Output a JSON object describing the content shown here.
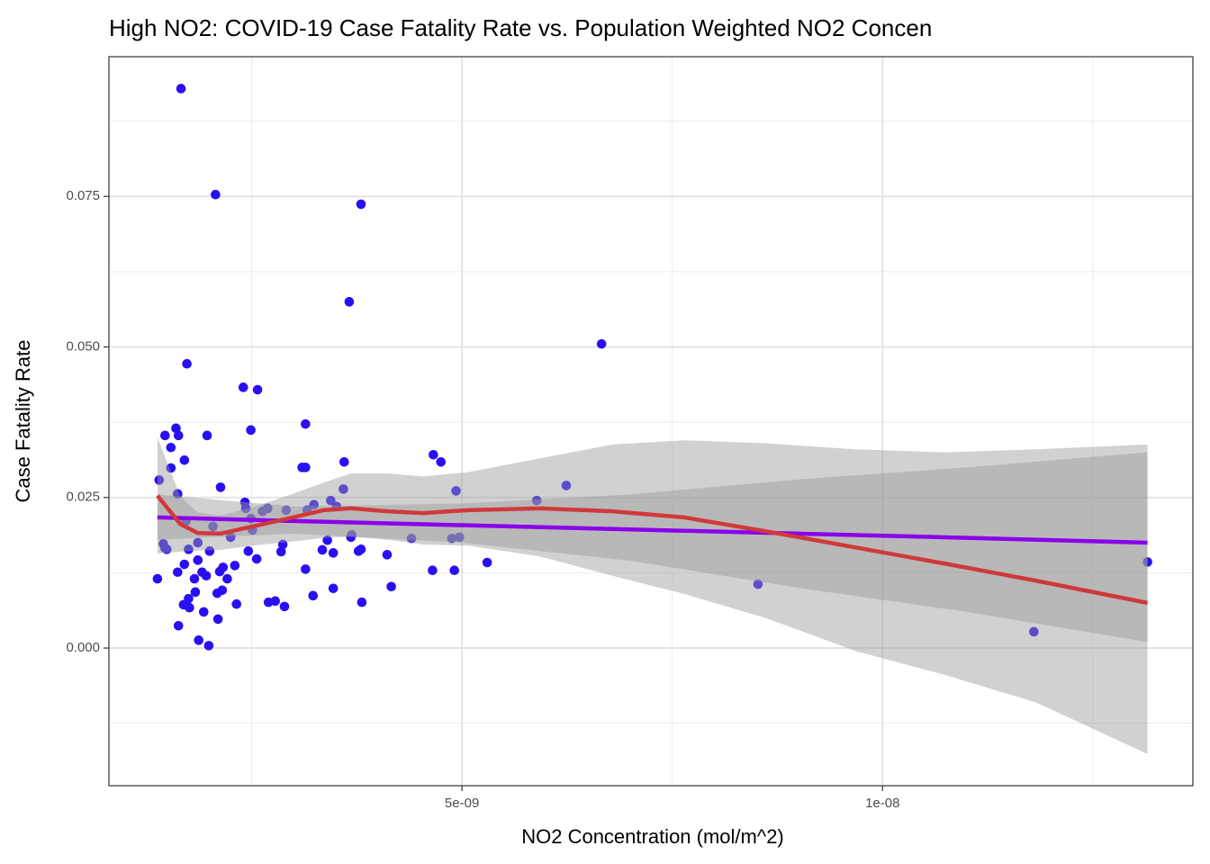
{
  "chart_data": {
    "type": "scatter",
    "title": "High NO2: COVID-19 Case Fatality Rate vs. Population Weighted NO2 Concen",
    "x_label": "NO2 Concentration (mol/m^2)",
    "y_label": "Case Fatality Rate",
    "xlim": [
      8.03e-10,
      1.369e-08
    ],
    "ylim": [
      -0.02286,
      0.0982
    ],
    "xticks": [
      {
        "value": 5e-09,
        "label": "5e-09"
      },
      {
        "value": 1e-08,
        "label": "1e-08"
      }
    ],
    "x_minor_ticks": [
      2.5e-09,
      7.5e-09,
      1.25e-08
    ],
    "yticks": [
      {
        "value": 0,
        "label": "0.000"
      },
      {
        "value": 0.025,
        "label": "0.025"
      },
      {
        "value": 0.05,
        "label": "0.050"
      },
      {
        "value": 0.075,
        "label": "0.075"
      }
    ],
    "y_minor_ticks": [
      -0.0125,
      0.0125,
      0.0375,
      0.0625,
      0.0875
    ],
    "grid": true,
    "band_color": "#9a9a9a",
    "series": [
      {
        "type": "scatter",
        "color": "#2a0ff2",
        "x": [
          1.66e-09,
          2.07e-09,
          3.8e-09,
          3.66e-09,
          6.66e-09,
          1.73e-09,
          2.4e-09,
          2.57e-09,
          3.14e-09,
          1.6e-09,
          1.47e-09,
          1.63e-09,
          1.97e-09,
          2.49e-09,
          1.54e-09,
          4.66e-09,
          1.7e-09,
          3.6e-09,
          4.75e-09,
          1.54e-09,
          3.1e-09,
          3.14e-09,
          1.4e-09,
          2.13e-09,
          6.24e-09,
          3.59e-09,
          4.93e-09,
          1.62e-09,
          2.42e-09,
          3.44e-09,
          5.89e-09,
          3.51e-09,
          3.24e-09,
          2.43e-09,
          2.69e-09,
          2.63e-09,
          2.91e-09,
          3.16e-09,
          2.49e-09,
          1.72e-09,
          2.04e-09,
          2.51e-09,
          2.25e-09,
          3.4e-09,
          3.69e-09,
          3.68e-09,
          4.4e-09,
          4.88e-09,
          4.97e-09,
          1.45e-09,
          1.86e-09,
          2.87e-09,
          1.47e-09,
          1.49e-09,
          1.75e-09,
          2e-09,
          2.46e-09,
          2.85e-09,
          3.34e-09,
          3.47e-09,
          3.77e-09,
          3.8e-09,
          4.11e-09,
          2.56e-09,
          5.3e-09,
          1.315e-08,
          1.86e-09,
          1.7e-09,
          2.3e-09,
          2.16e-09,
          3.14e-09,
          2.12e-09,
          4.65e-09,
          4.91e-09,
          1.62e-09,
          1.91e-09,
          1.96e-09,
          1.82e-09,
          2.21e-09,
          8.52e-09,
          4.16e-09,
          3.47e-09,
          2.15e-09,
          1.83e-09,
          2.09e-09,
          3.23e-09,
          1.75e-09,
          2.7e-09,
          2.78e-09,
          3.81e-09,
          2.32e-09,
          1.69e-09,
          1.76e-09,
          2.89e-09,
          1.93e-09,
          2.1e-09,
          1.63e-09,
          1.18e-08,
          1.87e-09,
          1.99e-09,
          1.38e-09
        ],
        "values": [
          0.0929,
          0.0753,
          0.0737,
          0.0575,
          0.0505,
          0.0472,
          0.0433,
          0.0429,
          0.0372,
          0.0365,
          0.0353,
          0.0353,
          0.0353,
          0.0362,
          0.0333,
          0.0321,
          0.0312,
          0.0309,
          0.0309,
          0.0299,
          0.03,
          0.03,
          0.0279,
          0.0267,
          0.027,
          0.0264,
          0.0261,
          0.0256,
          0.0242,
          0.0245,
          0.0245,
          0.0235,
          0.0238,
          0.0232,
          0.0232,
          0.0227,
          0.0229,
          0.0229,
          0.0215,
          0.0211,
          0.0202,
          0.0196,
          0.0184,
          0.0179,
          0.0188,
          0.0184,
          0.0182,
          0.0182,
          0.0184,
          0.0173,
          0.0175,
          0.0172,
          0.0166,
          0.0164,
          0.0164,
          0.0161,
          0.0161,
          0.016,
          0.0163,
          0.0158,
          0.0161,
          0.0164,
          0.0155,
          0.0148,
          0.0142,
          0.0143,
          0.0146,
          0.0139,
          0.0137,
          0.0134,
          0.0131,
          0.0127,
          0.0129,
          0.0129,
          0.0126,
          0.0126,
          0.012,
          0.0115,
          0.0115,
          0.0106,
          0.0102,
          0.0099,
          0.0096,
          0.0093,
          0.0091,
          0.0087,
          0.0082,
          0.0076,
          0.0078,
          0.0076,
          0.0073,
          0.0072,
          0.0067,
          0.0069,
          0.006,
          0.0048,
          0.0037,
          0.0027,
          0.0013,
          0.0004,
          0.0115
        ]
      },
      {
        "type": "line",
        "color": "#8a00ea",
        "x": [
          1.38e-09,
          3e-09,
          5e-09,
          7e-09,
          9e-09,
          1.1e-08,
          1.315e-08
        ],
        "values": [
          0.0217,
          0.0211,
          0.0204,
          0.0197,
          0.019,
          0.0183,
          0.0175
        ],
        "lower": [
          0.018,
          0.019,
          0.0175,
          0.0145,
          0.01,
          0.006,
          0.001
        ],
        "upper": [
          0.0255,
          0.0235,
          0.024,
          0.0255,
          0.028,
          0.03,
          0.0325
        ]
      },
      {
        "type": "line",
        "color": "#d0393b",
        "x": [
          1.38e-09,
          1.65e-09,
          1.86e-09,
          2.13e-09,
          2.51e-09,
          2.93e-09,
          3.36e-09,
          3.68e-09,
          4.11e-09,
          4.54e-09,
          5.07e-09,
          5.93e-09,
          6.79e-09,
          7.64e-09,
          8.61e-09,
          9.68e-09,
          1.075e-08,
          1.182e-08,
          1.315e-08
        ],
        "values": [
          0.0253,
          0.0206,
          0.0191,
          0.019,
          0.0202,
          0.0215,
          0.0229,
          0.0232,
          0.0227,
          0.0224,
          0.0229,
          0.0232,
          0.0227,
          0.0217,
          0.0194,
          0.0167,
          0.014,
          0.0112,
          0.0075
        ],
        "lower": [
          0.0157,
          0.016,
          0.0162,
          0.0163,
          0.017,
          0.0176,
          0.0183,
          0.0185,
          0.018,
          0.0172,
          0.017,
          0.0152,
          0.012,
          0.009,
          0.005,
          -0.0005,
          -0.0045,
          -0.009,
          -0.0176
        ],
        "upper": [
          0.035,
          0.0252,
          0.0225,
          0.022,
          0.0234,
          0.0253,
          0.0275,
          0.029,
          0.029,
          0.0285,
          0.0292,
          0.0315,
          0.0338,
          0.0345,
          0.034,
          0.033,
          0.0325,
          0.033,
          0.0338
        ]
      }
    ]
  }
}
